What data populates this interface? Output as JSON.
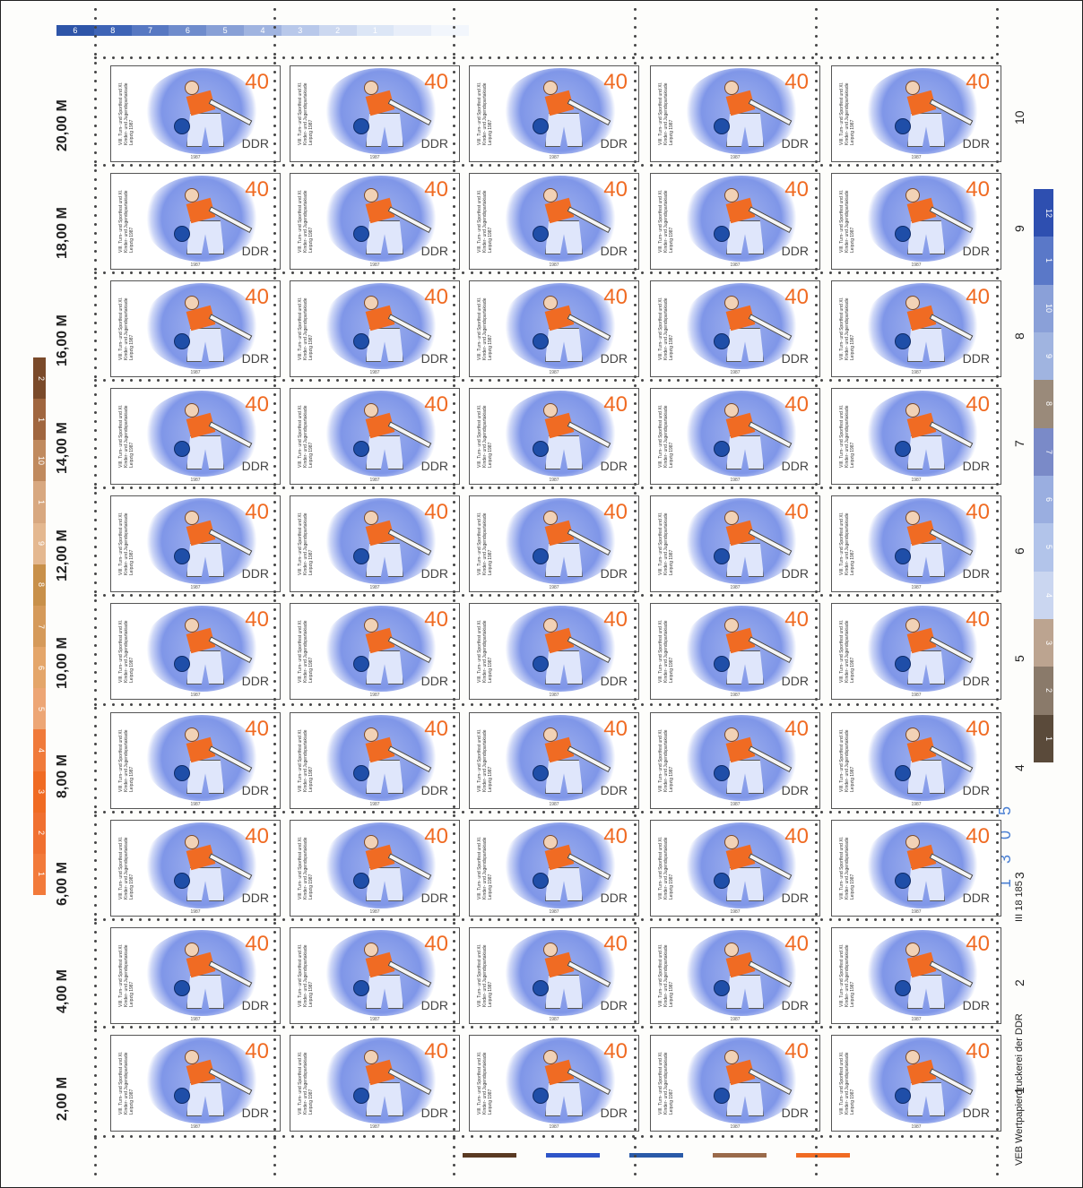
{
  "sheet": {
    "colors": {
      "sky_blue": "#8ba0ea",
      "orange": "#f06b23",
      "brown": "#7a4a2a",
      "ball_blue": "#1f4ea8"
    }
  },
  "stamp": {
    "face_value": "40",
    "country": "DDR",
    "caption_lines": [
      "VIII. Turn- und Sportfest und",
      "XI. Kinder- und Jugendspartakiade",
      "Leipzig 1987"
    ],
    "year": "1987",
    "rows": 10,
    "cols": 5
  },
  "margin_left": {
    "value_labels": [
      "20,00 M",
      "18,00 M",
      "16,00 M",
      "14,00 M",
      "12,00 M",
      "10,00 M",
      "8,00 M",
      "6,00 M",
      "4,00 M",
      "2,00 M"
    ]
  },
  "margin_right": {
    "row_numbers": [
      "10",
      "9",
      "8",
      "7",
      "6",
      "5",
      "4",
      "3",
      "2",
      "1"
    ],
    "printer_imprint": "VEB Wertpapierdruckerei der DDR",
    "control_number": "III 18 185",
    "sheet_number": "1 3 0 5"
  },
  "colorbars": {
    "top": [
      "6",
      "8",
      "7",
      "6",
      "5",
      "4",
      "3",
      "2",
      "1",
      "",
      ""
    ],
    "left": [
      "2",
      "1",
      "10",
      "1",
      "9",
      "8",
      "7",
      "6",
      "5",
      "4",
      "3",
      "2",
      "1"
    ],
    "right": [
      "12",
      "1",
      "10",
      "9",
      "8",
      "7",
      "6",
      "5",
      "4",
      "3",
      "2",
      "1"
    ]
  }
}
